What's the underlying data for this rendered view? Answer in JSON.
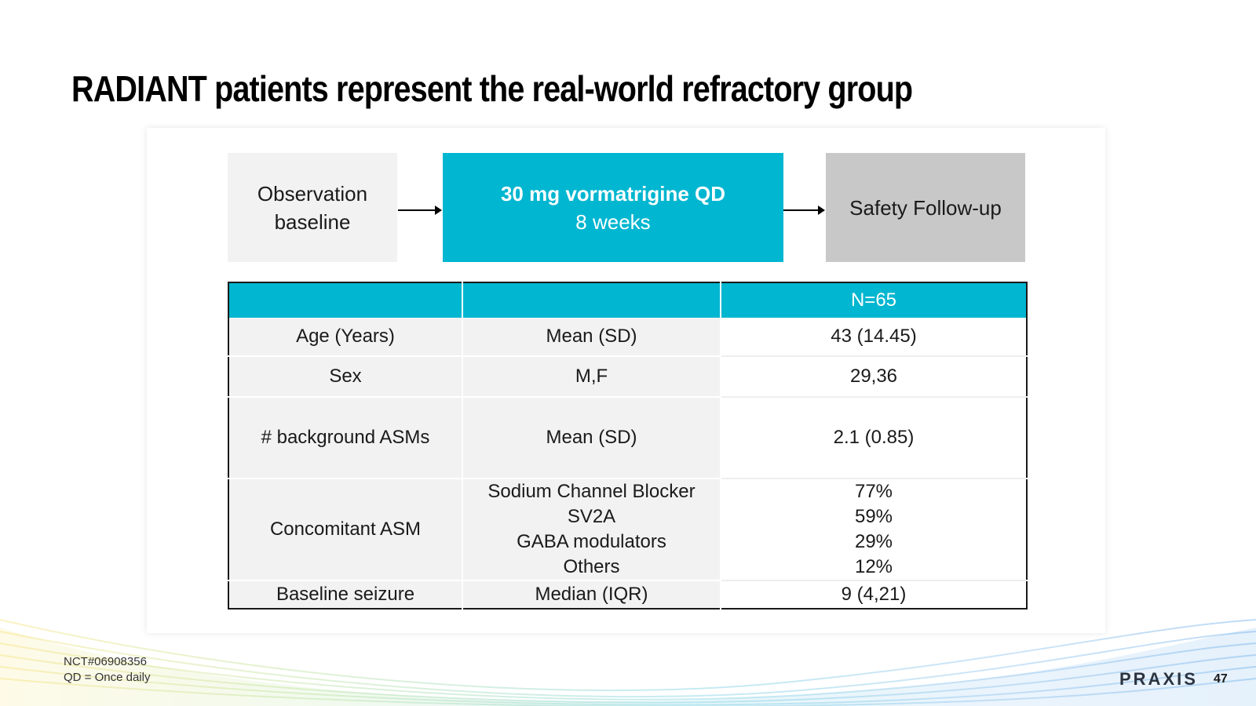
{
  "slide": {
    "title": "RADIANT patients represent the real-world refractory group"
  },
  "flow": {
    "observation": {
      "line1": "Observation",
      "line2": "baseline"
    },
    "treatment": {
      "line1": "30 mg vormatrigine QD",
      "line2": "8 weeks"
    },
    "safety": {
      "label": "Safety Follow-up"
    }
  },
  "table": {
    "headers": [
      "",
      "",
      "N=65"
    ],
    "rows": [
      {
        "characteristic": "Age (Years)",
        "measure": "Mean (SD)",
        "value": "43 (14.45)"
      },
      {
        "characteristic": "Sex",
        "measure": "M,F",
        "value": "29,36"
      },
      {
        "characteristic": "# background ASMs",
        "measure": "Mean (SD)",
        "value": "2.1 (0.85)"
      },
      {
        "characteristic": "Concomitant ASM",
        "measures": [
          "Sodium Channel Blocker",
          "SV2A",
          "GABA modulators",
          "Others"
        ],
        "values": [
          "77%",
          "59%",
          "29%",
          "12%"
        ]
      },
      {
        "characteristic": "Baseline seizure",
        "measure": "Median (IQR)",
        "value": "9 (4,21)"
      }
    ]
  },
  "footer": {
    "note1": "NCT#06908356",
    "note2": "QD = Once daily",
    "logo_text": "PRAXIS",
    "page_number": "47"
  },
  "colors": {
    "accent": "#00b6d0",
    "observation_bg": "#f2f2f2",
    "safety_bg": "#c8c8c8"
  }
}
